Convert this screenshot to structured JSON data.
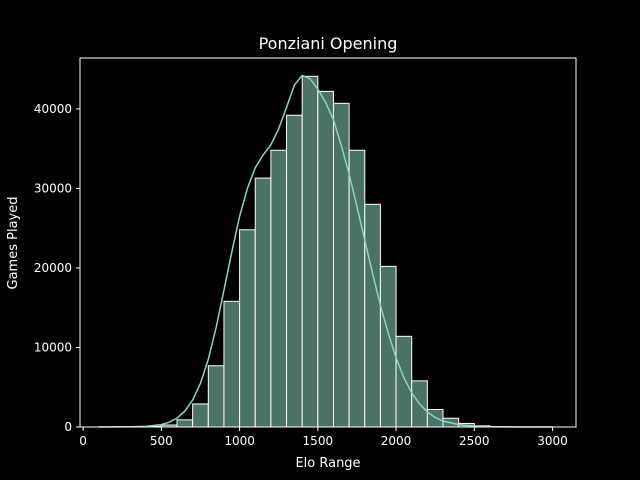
{
  "chart_data": {
    "type": "bar",
    "title": "Ponziani Opening",
    "xlabel": "Elo Range",
    "ylabel": "Games Played",
    "xlim": [
      -20,
      3150
    ],
    "ylim": [
      0,
      46400
    ],
    "xticks": [
      0,
      500,
      1000,
      1500,
      2000,
      2500,
      3000
    ],
    "yticks": [
      0,
      10000,
      20000,
      30000,
      40000
    ],
    "bins": [
      {
        "x0": 100,
        "x1": 200,
        "value": 10
      },
      {
        "x0": 200,
        "x1": 300,
        "value": 15
      },
      {
        "x0": 300,
        "x1": 400,
        "value": 30
      },
      {
        "x0": 400,
        "x1": 500,
        "value": 80
      },
      {
        "x0": 500,
        "x1": 600,
        "value": 250
      },
      {
        "x0": 600,
        "x1": 700,
        "value": 900
      },
      {
        "x0": 700,
        "x1": 800,
        "value": 2900
      },
      {
        "x0": 800,
        "x1": 900,
        "value": 7700
      },
      {
        "x0": 900,
        "x1": 1000,
        "value": 15800
      },
      {
        "x0": 1000,
        "x1": 1100,
        "value": 24800
      },
      {
        "x0": 1100,
        "x1": 1200,
        "value": 31300
      },
      {
        "x0": 1200,
        "x1": 1300,
        "value": 34800
      },
      {
        "x0": 1300,
        "x1": 1400,
        "value": 39200
      },
      {
        "x0": 1400,
        "x1": 1500,
        "value": 44100
      },
      {
        "x0": 1500,
        "x1": 1600,
        "value": 42200
      },
      {
        "x0": 1600,
        "x1": 1700,
        "value": 40700
      },
      {
        "x0": 1700,
        "x1": 1800,
        "value": 34800
      },
      {
        "x0": 1800,
        "x1": 1900,
        "value": 28000
      },
      {
        "x0": 1900,
        "x1": 2000,
        "value": 20200
      },
      {
        "x0": 2000,
        "x1": 2100,
        "value": 11400
      },
      {
        "x0": 2100,
        "x1": 2200,
        "value": 5800
      },
      {
        "x0": 2200,
        "x1": 2300,
        "value": 2200
      },
      {
        "x0": 2300,
        "x1": 2400,
        "value": 1100
      },
      {
        "x0": 2400,
        "x1": 2500,
        "value": 450
      },
      {
        "x0": 2500,
        "x1": 2600,
        "value": 150
      },
      {
        "x0": 2600,
        "x1": 2700,
        "value": 50
      },
      {
        "x0": 2700,
        "x1": 2800,
        "value": 20
      },
      {
        "x0": 2800,
        "x1": 2900,
        "value": 8
      },
      {
        "x0": 2900,
        "x1": 3000,
        "value": 3
      }
    ],
    "kde": {
      "x": [
        100,
        200,
        300,
        400,
        500,
        550,
        600,
        650,
        700,
        750,
        800,
        850,
        900,
        950,
        1000,
        1050,
        1100,
        1150,
        1200,
        1250,
        1300,
        1350,
        1400,
        1450,
        1500,
        1550,
        1600,
        1650,
        1700,
        1750,
        1800,
        1850,
        1900,
        1950,
        2000,
        2050,
        2100,
        2150,
        2200,
        2250,
        2300,
        2400,
        2500,
        2600,
        2700,
        2800,
        2900,
        3000
      ],
      "y": [
        0,
        10,
        30,
        80,
        300,
        600,
        1100,
        2000,
        3400,
        5500,
        8500,
        12500,
        17200,
        22000,
        26500,
        30000,
        32600,
        34200,
        35500,
        37500,
        40200,
        43000,
        44200,
        43800,
        42500,
        40800,
        38600,
        35400,
        31800,
        27700,
        23500,
        19300,
        15300,
        11800,
        8700,
        6200,
        4300,
        2900,
        1900,
        1200,
        750,
        300,
        100,
        35,
        12,
        4,
        1,
        0
      ]
    },
    "grid": false,
    "legend": "none"
  },
  "colors": {
    "background": "#000000",
    "bar_fill": "#4a7265",
    "bar_edge": "#ffffff",
    "kde_line": "#8dd3c7",
    "axis": "#ffffff",
    "text": "#ffffff"
  }
}
